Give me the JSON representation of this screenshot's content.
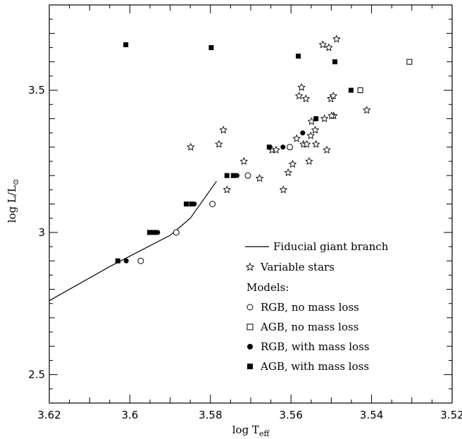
{
  "chart_data": {
    "type": "scatter",
    "xlabel_main": "log T",
    "xlabel_sub": "eff",
    "ylabel_main": "log L/L",
    "ylabel_symbol": "⊙",
    "xlim": [
      3.62,
      3.52
    ],
    "ylim": [
      2.4,
      3.8
    ],
    "x_ticks": [
      "3.62",
      "3.6",
      "3.58",
      "3.56",
      "3.54",
      "3.52"
    ],
    "x_tick_values": [
      3.62,
      3.6,
      3.58,
      3.56,
      3.54,
      3.52
    ],
    "y_ticks": [
      "2.5",
      "3",
      "3.5"
    ],
    "y_tick_values": [
      2.5,
      3.0,
      3.5
    ],
    "legend": {
      "fiducial": "Fiducial giant branch",
      "variable": "Variable stars",
      "models_header": "Models:",
      "rgb_no_loss": "RGB, no mass loss",
      "agb_no_loss": "AGB, no mass loss",
      "rgb_loss": "RGB, with mass loss",
      "agb_loss": "AGB, with mass loss"
    },
    "series": {
      "fiducial_line": [
        [
          3.62,
          2.76
        ],
        [
          3.605,
          2.88
        ],
        [
          3.59,
          2.99
        ],
        [
          3.585,
          3.05
        ],
        [
          3.5785,
          3.18
        ]
      ],
      "variable_stars": [
        [
          3.5849,
          3.3
        ],
        [
          3.5768,
          3.36
        ],
        [
          3.5779,
          3.31
        ],
        [
          3.5759,
          3.15
        ],
        [
          3.5717,
          3.25
        ],
        [
          3.5678,
          3.19
        ],
        [
          3.5647,
          3.29
        ],
        [
          3.5637,
          3.29
        ],
        [
          3.5619,
          3.15
        ],
        [
          3.5607,
          3.21
        ],
        [
          3.5596,
          3.24
        ],
        [
          3.5586,
          3.33
        ],
        [
          3.558,
          3.48
        ],
        [
          3.5574,
          3.51
        ],
        [
          3.5569,
          3.31
        ],
        [
          3.5563,
          3.47
        ],
        [
          3.5561,
          3.31
        ],
        [
          3.5555,
          3.25
        ],
        [
          3.5551,
          3.34
        ],
        [
          3.5549,
          3.39
        ],
        [
          3.554,
          3.36
        ],
        [
          3.5538,
          3.31
        ],
        [
          3.5521,
          3.66
        ],
        [
          3.5517,
          3.4
        ],
        [
          3.5511,
          3.29
        ],
        [
          3.5506,
          3.65
        ],
        [
          3.5501,
          3.47
        ],
        [
          3.5494,
          3.41
        ],
        [
          3.5499,
          3.41
        ],
        [
          3.5495,
          3.48
        ],
        [
          3.5487,
          3.68
        ],
        [
          3.5412,
          3.43
        ]
      ],
      "rgb_no_mass_loss": [
        [
          3.5973,
          2.9
        ],
        [
          3.5885,
          3.0
        ],
        [
          3.5795,
          3.1
        ],
        [
          3.5707,
          3.2
        ],
        [
          3.5603,
          3.3
        ]
      ],
      "agb_no_mass_loss": [
        [
          3.5428,
          3.5
        ],
        [
          3.5306,
          3.6
        ]
      ],
      "rgb_with_mass_loss": [
        [
          3.6009,
          2.9
        ],
        [
          3.5931,
          3.0
        ],
        [
          3.584,
          3.1
        ],
        [
          3.5734,
          3.2
        ],
        [
          3.562,
          3.3
        ],
        [
          3.5571,
          3.35
        ]
      ],
      "agb_with_mass_loss": [
        [
          3.603,
          2.9
        ],
        [
          3.5951,
          3.0
        ],
        [
          3.586,
          3.1
        ],
        [
          3.5759,
          3.2
        ],
        [
          3.5654,
          3.3
        ],
        [
          3.5538,
          3.4
        ],
        [
          3.601,
          3.66
        ],
        [
          3.5798,
          3.65
        ],
        [
          3.5582,
          3.62
        ],
        [
          3.5491,
          3.6
        ],
        [
          3.5451,
          3.5
        ],
        [
          3.594,
          3.0
        ],
        [
          3.5847,
          3.1
        ],
        [
          3.5743,
          3.2
        ]
      ]
    }
  }
}
